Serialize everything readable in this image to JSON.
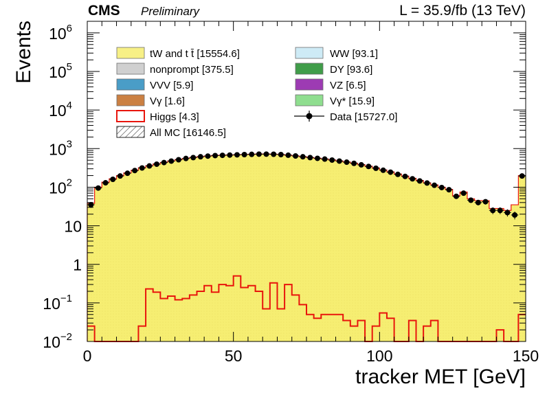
{
  "header": {
    "experiment": "CMS",
    "status": "Preliminary",
    "lumi": "L = 35.9/fb (13 TeV)"
  },
  "colors": {
    "ttbar": "#f6ee72",
    "nonprompt": "#c8c8c8",
    "vvv": "#2b8cbe",
    "vgamma": "#c26b22",
    "higgs": "#e8140c",
    "ww": "#c6e8f5",
    "dy": "#1f8c2a",
    "vz": "#8c1aa6",
    "vgammastar": "#7cd97c",
    "data": "#000000"
  },
  "chart_data": {
    "type": "bar",
    "xlabel": "tracker MET [GeV]",
    "ylabel": "Events",
    "xlim": [
      0,
      150
    ],
    "ylim": [
      0.01,
      2000000
    ],
    "yscale": "log",
    "grid": false,
    "legend_position": "top",
    "x_ticks": [
      "0",
      "50",
      "100",
      "150"
    ],
    "y_ticks": [
      {
        "v": 0.01,
        "base": "10",
        "exp": "−2"
      },
      {
        "v": 0.1,
        "base": "10",
        "exp": "−1"
      },
      {
        "v": 1,
        "base": "1",
        "exp": ""
      },
      {
        "v": 10,
        "base": "10",
        "exp": ""
      },
      {
        "v": 100,
        "base": "10",
        "exp": "2"
      },
      {
        "v": 1000,
        "base": "10",
        "exp": "3"
      },
      {
        "v": 10000,
        "base": "10",
        "exp": "4"
      },
      {
        "v": 100000,
        "base": "10",
        "exp": "5"
      },
      {
        "v": 1000000,
        "base": "10",
        "exp": "6"
      }
    ],
    "bin_edges": [
      0,
      2.5,
      5,
      7.5,
      10,
      12.5,
      15,
      17.5,
      20,
      22.5,
      25,
      27.5,
      30,
      32.5,
      35,
      37.5,
      40,
      42.5,
      45,
      47.5,
      50,
      52.5,
      55,
      57.5,
      60,
      62.5,
      65,
      67.5,
      70,
      72.5,
      75,
      77.5,
      80,
      82.5,
      85,
      87.5,
      90,
      92.5,
      95,
      97.5,
      100,
      102.5,
      105,
      107.5,
      110,
      112.5,
      115,
      117.5,
      120,
      122.5,
      125,
      127.5,
      130,
      132.5,
      135,
      137.5,
      140,
      142.5,
      145,
      147.5,
      150
    ],
    "series": [
      {
        "name": "tW and t t̄ [15554.6]",
        "style": "fill",
        "values": [
          38,
          100,
          135,
          165,
          200,
          235,
          275,
          320,
          360,
          400,
          440,
          480,
          520,
          560,
          590,
          620,
          645,
          665,
          675,
          685,
          695,
          705,
          715,
          725,
          725,
          720,
          705,
          680,
          650,
          620,
          590,
          565,
          540,
          510,
          480,
          450,
          420,
          385,
          350,
          315,
          280,
          250,
          220,
          195,
          170,
          150,
          130,
          115,
          100,
          88,
          60,
          75,
          50,
          45,
          45,
          28,
          28,
          25,
          35,
          200
        ]
      },
      {
        "name": "Higgs [4.3]",
        "style": "line",
        "values": [
          0.025,
          0.01,
          0.01,
          0.01,
          0.01,
          0.01,
          0.01,
          0.025,
          0.23,
          0.19,
          0.13,
          0.15,
          0.12,
          0.13,
          0.16,
          0.2,
          0.28,
          0.19,
          0.3,
          0.28,
          0.5,
          0.25,
          0.28,
          0.2,
          0.07,
          0.33,
          0.07,
          0.3,
          0.16,
          0.09,
          0.05,
          0.04,
          0.05,
          0.05,
          0.05,
          0.035,
          0.025,
          0.035,
          0.01,
          0.025,
          0.055,
          0.04,
          0.01,
          0.01,
          0.035,
          0.01,
          0.025,
          0.035,
          0.01,
          0.01,
          0.01,
          0.01,
          0.01,
          0.01,
          0.01,
          0.01,
          0.02,
          0.01,
          0.01,
          0.05
        ]
      },
      {
        "name": "Data [15727.0]",
        "style": "points",
        "values": [
          35,
          95,
          130,
          160,
          195,
          230,
          270,
          315,
          355,
          395,
          435,
          475,
          515,
          555,
          585,
          615,
          640,
          660,
          670,
          680,
          690,
          700,
          710,
          720,
          720,
          715,
          700,
          675,
          645,
          615,
          585,
          560,
          535,
          505,
          475,
          445,
          415,
          380,
          345,
          310,
          275,
          245,
          215,
          190,
          165,
          145,
          128,
          112,
          98,
          86,
          58,
          70,
          46,
          40,
          42,
          25,
          25,
          22,
          19,
          195
        ]
      }
    ],
    "legend": {
      "left": [
        {
          "key": "ttbar",
          "label": "tW and t t̄ [15554.6]"
        },
        {
          "key": "nonprompt",
          "label": "nonprompt [375.5]"
        },
        {
          "key": "vvv",
          "label": "VVV [5.9]"
        },
        {
          "key": "vgamma",
          "label": "Vγ [1.6]"
        },
        {
          "key": "higgs",
          "label": "Higgs [4.3]"
        },
        {
          "key": "allmc",
          "label": "All MC [16146.5]"
        }
      ],
      "right": [
        {
          "key": "ww",
          "label": "WW [93.1]"
        },
        {
          "key": "dy",
          "label": "DY [93.6]"
        },
        {
          "key": "vz",
          "label": "VZ [6.5]"
        },
        {
          "key": "vgammastar",
          "label": "Vγ* [15.9]"
        },
        {
          "key": "data",
          "label": "Data [15727.0]"
        }
      ]
    }
  }
}
